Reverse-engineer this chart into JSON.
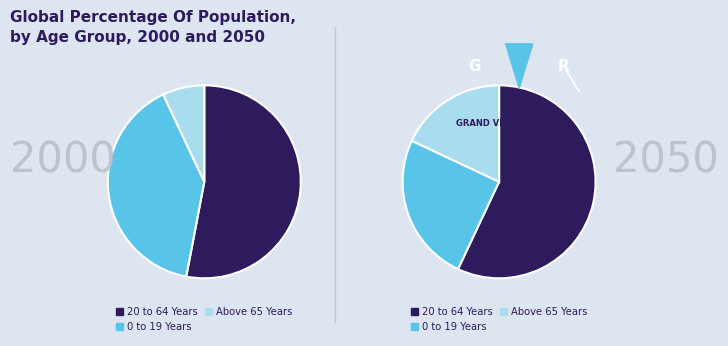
{
  "title_line1": "Global Percentage Of Population,",
  "title_line2": "by Age Group, 2000 and 2050",
  "title_color": "#2d1b5e",
  "background_color": "#dde5f0",
  "year_2000": {
    "label": "2000",
    "values": [
      53,
      40,
      7
    ],
    "colors": [
      "#2d1b5e",
      "#57c4e8",
      "#aadcf0"
    ],
    "startangle": 90
  },
  "year_2050": {
    "label": "2050",
    "values": [
      57,
      25,
      18
    ],
    "colors": [
      "#2d1b5e",
      "#57c4e8",
      "#aadcf0"
    ],
    "startangle": 90
  },
  "legend_labels": [
    "20 to 64 Years",
    "0 to 19 Years",
    "Above 65 Years"
  ],
  "legend_colors": [
    "#2d1b5e",
    "#57c4e8",
    "#aadcf0"
  ],
  "year_label_color": "#b8bec8",
  "year_label_fontsize": 30,
  "title_fontsize": 11,
  "logo_bg": "#2d1b5e",
  "logo_accent": "#57c4e8",
  "logo_text_color": "white",
  "divider_color": "#c0c8d8"
}
